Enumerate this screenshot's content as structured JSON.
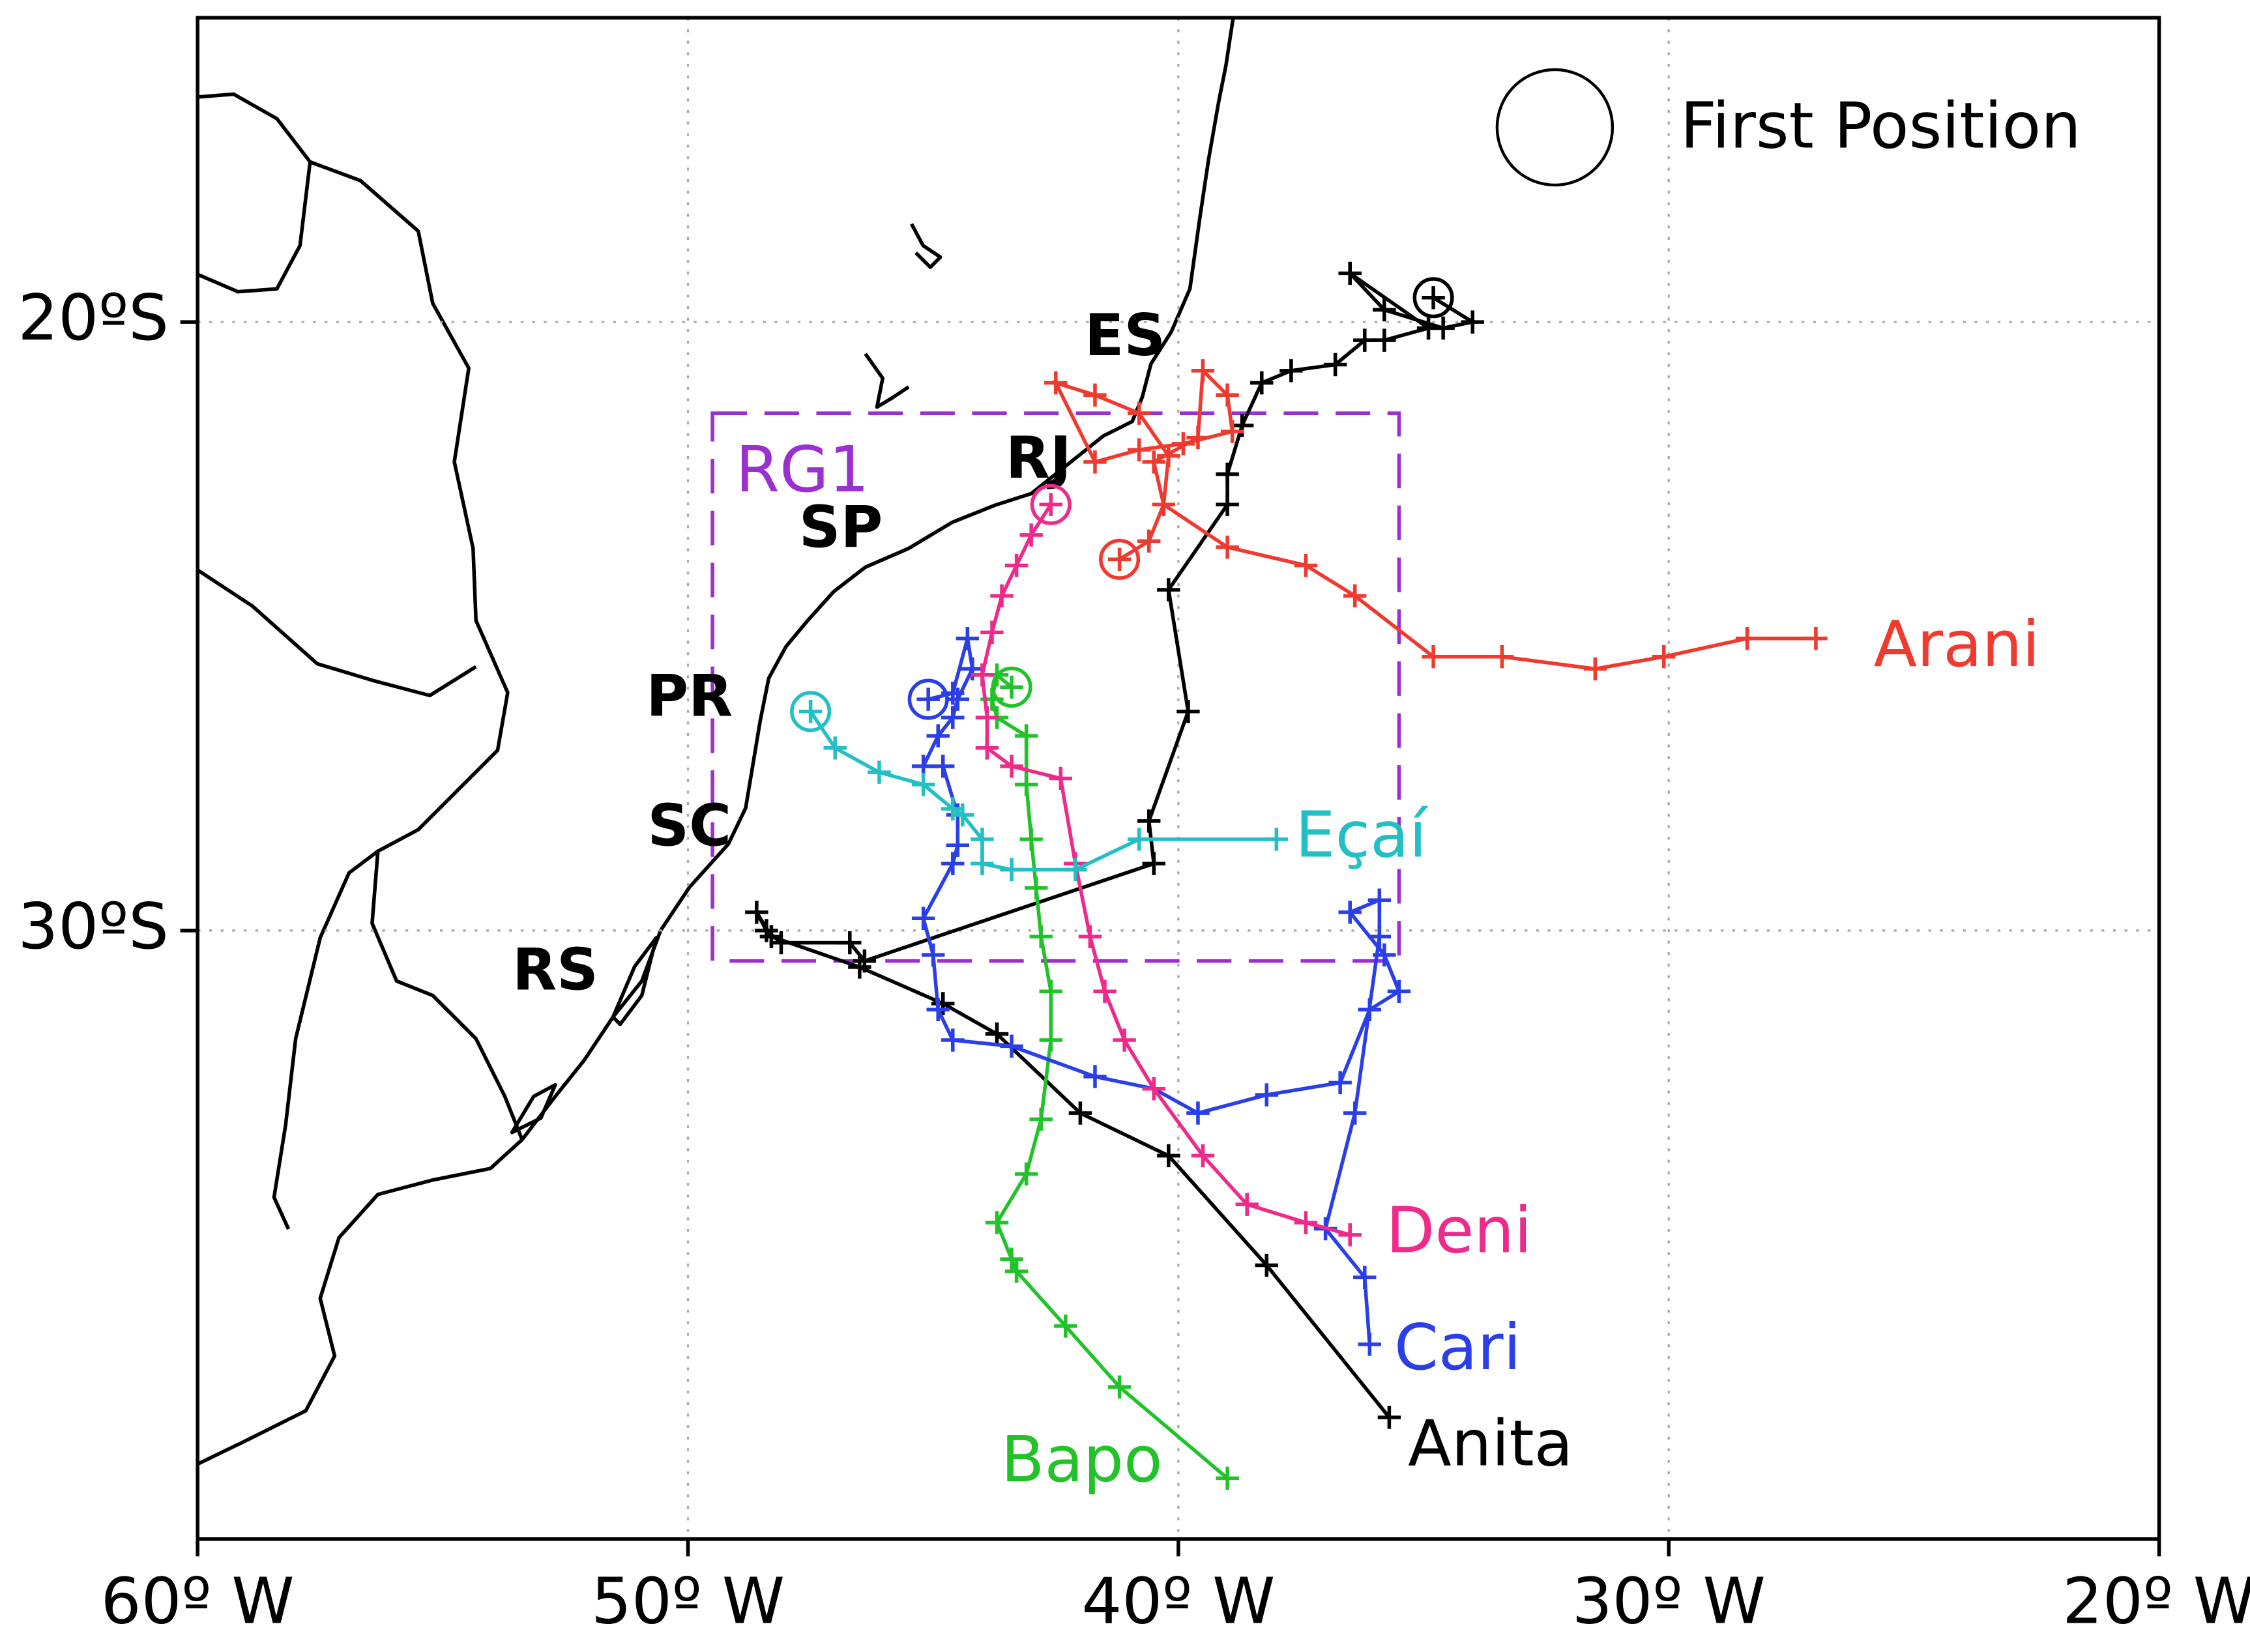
{
  "chart_data": {
    "type": "line",
    "xlim": [
      -60,
      -20
    ],
    "ylim": [
      -40,
      -15
    ],
    "xticks": [
      {
        "value": -60,
        "label": "60º W"
      },
      {
        "value": -50,
        "label": "50º W"
      },
      {
        "value": -40,
        "label": "40º W"
      },
      {
        "value": -30,
        "label": "30º W"
      },
      {
        "value": -20,
        "label": "20º W"
      }
    ],
    "yticks": [
      {
        "value": -20,
        "label": "20ºS"
      },
      {
        "value": -30,
        "label": "30ºS"
      }
    ],
    "grid": true,
    "legend": {
      "label": "First Position",
      "corner": "top-right"
    },
    "regions": [
      {
        "label": "RG1",
        "color": "#9b30d0",
        "lon": [
          -49.5,
          -35.5
        ],
        "lat": [
          -21.5,
          -30.5
        ]
      }
    ],
    "places": [
      "ES",
      "RJ",
      "SP",
      "PR",
      "SC",
      "RS"
    ],
    "series": [
      {
        "name": "Anita",
        "color": "#000000",
        "x": [
          -34.8,
          -34.0,
          -34.6,
          -35.8,
          -36.5,
          -34.9,
          -35.8,
          -36.2,
          -36.8,
          -37.7,
          -38.3,
          -38.7,
          -39.0,
          -39.0,
          -40.2,
          -39.8,
          -40.6,
          -40.5,
          -46.4,
          -46.7,
          -48.1,
          -48.4,
          -48.6,
          -48.3,
          -46.5,
          -44.8,
          -43.7,
          -42.0,
          -40.2,
          -38.2,
          -35.7
        ],
        "values": [
          -19.6,
          -20.0,
          -20.1,
          -19.8,
          -19.2,
          -20.1,
          -20.3,
          -20.3,
          -20.7,
          -20.8,
          -21.0,
          -21.7,
          -22.5,
          -23.0,
          -24.4,
          -26.4,
          -28.2,
          -28.9,
          -30.5,
          -30.2,
          -30.2,
          -30.0,
          -29.7,
          -30.1,
          -30.6,
          -31.2,
          -31.7,
          -33.0,
          -33.7,
          -35.5,
          -38.0
        ]
      },
      {
        "name": "Arani",
        "color": "#ee3a2f",
        "x": [
          -41.2,
          -40.6,
          -40.3,
          -40.5,
          -39.6,
          -39.5,
          -39.0,
          -38.9,
          -39.9,
          -40.8,
          -41.7,
          -42.5,
          -41.7,
          -40.8,
          -40.2,
          -40.3,
          -39.0,
          -37.4,
          -36.4,
          -34.8,
          -33.4,
          -31.5,
          -30.1,
          -28.4,
          -27.0
        ],
        "values": [
          -23.9,
          -23.6,
          -23.0,
          -22.3,
          -21.9,
          -20.8,
          -21.2,
          -21.8,
          -22.0,
          -22.1,
          -22.3,
          -21.0,
          -21.2,
          -21.5,
          -22.2,
          -23.0,
          -23.7,
          -24.0,
          -24.5,
          -25.5,
          -25.5,
          -25.7,
          -25.5,
          -25.2,
          -25.2
        ]
      },
      {
        "name": "Bapo",
        "color": "#22c22a",
        "x": [
          -43.4,
          -43.7,
          -43.8,
          -43.7,
          -43.1,
          -43.1,
          -43.0,
          -42.9,
          -42.8,
          -42.6,
          -42.6,
          -42.8,
          -43.1,
          -43.7,
          -43.4,
          -43.3,
          -42.3,
          -41.2,
          -39.0
        ],
        "values": [
          -26.0,
          -25.8,
          -26.2,
          -26.5,
          -26.8,
          -27.6,
          -28.5,
          -29.3,
          -30.1,
          -31.0,
          -31.8,
          -33.1,
          -34.0,
          -34.8,
          -35.4,
          -35.6,
          -36.5,
          -37.5,
          -39.0
        ]
      },
      {
        "name": "Cari",
        "color": "#2a3fe8",
        "x": [
          -45.1,
          -44.6,
          -44.3,
          -44.2,
          -44.5,
          -44.6,
          -44.9,
          -45.2,
          -44.8,
          -44.5,
          -44.5,
          -44.6,
          -45.2,
          -45.0,
          -44.9,
          -44.6,
          -43.4,
          -41.7,
          -40.5,
          -39.6,
          -38.2,
          -36.7,
          -36.1,
          -35.5,
          -35.8,
          -36.5,
          -35.9,
          -35.9,
          -36.4,
          -37.0,
          -36.2,
          -36.1
        ],
        "values": [
          -26.2,
          -26.1,
          -25.2,
          -25.7,
          -26.2,
          -26.5,
          -26.8,
          -27.3,
          -27.3,
          -28.1,
          -28.6,
          -28.9,
          -29.8,
          -30.4,
          -31.3,
          -31.8,
          -31.9,
          -32.4,
          -32.6,
          -33.0,
          -32.7,
          -32.5,
          -31.3,
          -31.0,
          -30.4,
          -29.7,
          -29.5,
          -30.1,
          -33.0,
          -34.9,
          -35.7,
          -36.8
        ]
      },
      {
        "name": "Deni",
        "color": "#ee2a8a",
        "x": [
          -42.6,
          -43.0,
          -43.3,
          -43.6,
          -43.8,
          -44.0,
          -43.9,
          -43.9,
          -43.4,
          -42.4,
          -42.1,
          -41.8,
          -41.5,
          -41.1,
          -40.5,
          -39.5,
          -38.6,
          -37.4,
          -36.5
        ],
        "values": [
          -23.0,
          -23.5,
          -24.0,
          -24.5,
          -25.1,
          -25.8,
          -26.5,
          -27.0,
          -27.3,
          -27.5,
          -28.9,
          -30.1,
          -31.0,
          -31.8,
          -32.6,
          -33.7,
          -34.5,
          -34.8,
          -35.0
        ]
      },
      {
        "name": "Eçaí",
        "color": "#22bfc4",
        "x": [
          -47.5,
          -47.0,
          -46.1,
          -45.2,
          -44.6,
          -44.4,
          -44.0,
          -44.0,
          -43.4,
          -42.1,
          -40.8,
          -38.0
        ],
        "values": [
          -26.4,
          -27.0,
          -27.4,
          -27.6,
          -28.0,
          -28.1,
          -28.5,
          -28.9,
          -29.0,
          -29.0,
          -28.5,
          -28.5
        ]
      }
    ]
  }
}
